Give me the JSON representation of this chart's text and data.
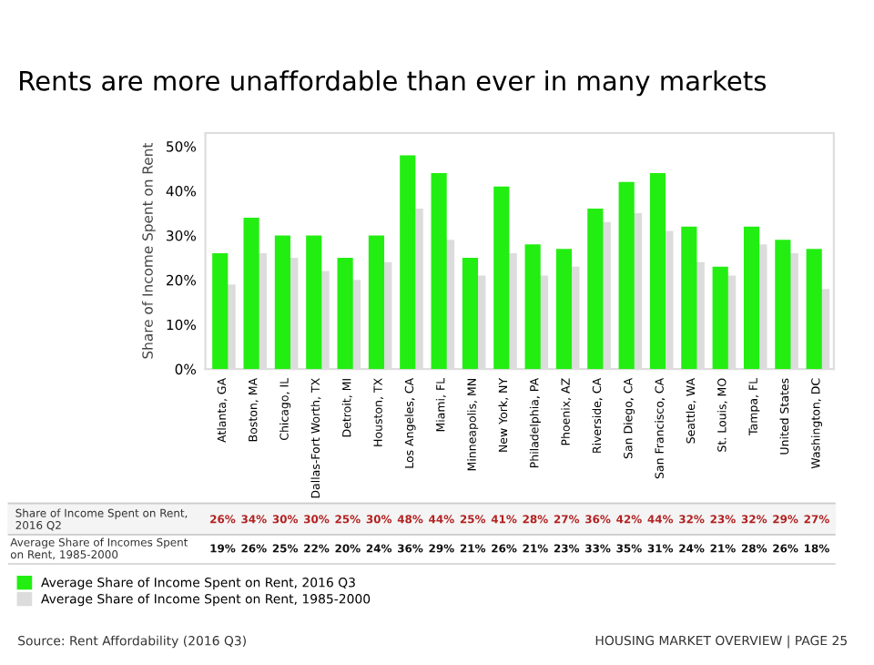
{
  "chart_data": {
    "type": "bar",
    "title": "Rents are more unaffordable than ever in many markets",
    "ylabel": "Share of Income Spent on Rent",
    "categories": [
      "Atlanta, GA",
      "Boston, MA",
      "Chicago, IL",
      "Dallas-Fort Worth, TX",
      "Detroit, MI",
      "Houston, TX",
      "Los Angeles, CA",
      "Miami, FL",
      "Minneapolis, MN",
      "New York, NY",
      "Philadelphia, PA",
      "Phoenix, AZ",
      "Riverside, CA",
      "San Diego, CA",
      "San Francisco, CA",
      "Seattle, WA",
      "St. Louis, MO",
      "Tampa, FL",
      "United States",
      "Washington, DC"
    ],
    "series": [
      {
        "name": "Average Share of Income Spent on Rent, 2016 Q3",
        "color": "#22ee11",
        "values": [
          26,
          34,
          30,
          30,
          25,
          30,
          48,
          44,
          25,
          41,
          28,
          27,
          36,
          42,
          44,
          32,
          23,
          32,
          29,
          27
        ],
        "value_labels": [
          "26%",
          "34%",
          "30%",
          "30%",
          "25%",
          "30%",
          "48%",
          "44%",
          "25%",
          "41%",
          "28%",
          "27%",
          "36%",
          "42%",
          "44%",
          "32%",
          "23%",
          "32%",
          "29%",
          "27%"
        ]
      },
      {
        "name": "Average Share of Income Spent on Rent, 1985-2000",
        "color": "#dcdcdc",
        "values": [
          19,
          26,
          25,
          22,
          20,
          24,
          36,
          29,
          21,
          26,
          21,
          23,
          33,
          35,
          31,
          24,
          21,
          28,
          26,
          18
        ],
        "value_labels": [
          "19%",
          "26%",
          "25%",
          "22%",
          "20%",
          "24%",
          "36%",
          "29%",
          "21%",
          "26%",
          "21%",
          "23%",
          "33%",
          "35%",
          "31%",
          "24%",
          "21%",
          "28%",
          "26%",
          "18%"
        ]
      }
    ],
    "ylim": [
      0,
      53
    ],
    "yticks": [
      {
        "value": 0,
        "label": "0%"
      },
      {
        "value": 10,
        "label": "10%"
      },
      {
        "value": 20,
        "label": "20%"
      },
      {
        "value": 30,
        "label": "30%"
      },
      {
        "value": 40,
        "label": "40%"
      },
      {
        "value": 50,
        "label": "50%"
      }
    ],
    "grid": false,
    "legend": "bottom left",
    "annotations": [
      "Share of Income Spent on Rent, 2016 Q2",
      "Average Share of Incomes Spent on Rent, 1985-2000",
      "Source: Rent Affordability (2016 Q3)",
      "HOUSING MARKET OVERVIEW | PAGE 25"
    ]
  }
}
